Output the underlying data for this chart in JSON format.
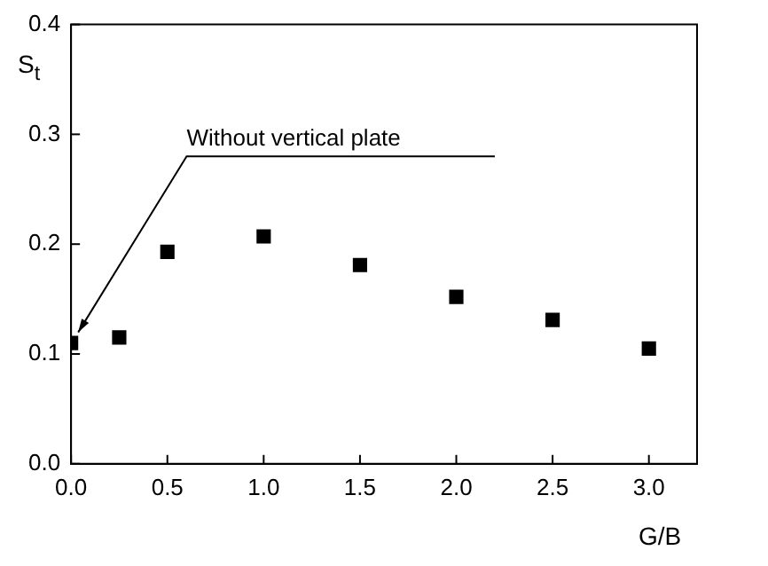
{
  "chart_data": {
    "type": "scatter",
    "xlabel": "G/B",
    "ylabel": "S$_{t}$",
    "x": [
      0,
      0.25,
      0.5,
      1.0,
      1.5,
      2.0,
      2.5,
      3.0
    ],
    "values": [
      0.11,
      0.115,
      0.193,
      0.207,
      0.181,
      0.152,
      0.131,
      0.105
    ],
    "color": "#000000",
    "marker": "square",
    "grid": false,
    "legend": false,
    "xlim": [
      0,
      3.25
    ],
    "ylim": [
      0,
      0.4
    ],
    "xticks": [
      {
        "value": 0,
        "label": "0.0"
      },
      {
        "value": 0.5,
        "label": "0.5"
      },
      {
        "value": 1,
        "label": "1.0"
      },
      {
        "value": 1.5,
        "label": "1.5"
      },
      {
        "value": 2,
        "label": "2.0"
      },
      {
        "value": 2.5,
        "label": "2.5"
      },
      {
        "value": 3,
        "label": "3.0"
      }
    ],
    "yticks": [
      {
        "value": 0,
        "label": "0.0"
      },
      {
        "value": 0.1,
        "label": "0.1"
      },
      {
        "value": 0.2,
        "label": "0.2"
      },
      {
        "value": 0.3,
        "label": "0.3"
      },
      {
        "value": 0.4,
        "label": "0.4"
      }
    ],
    "annotations": [
      {
        "text": "Without vertical plate",
        "x": 0,
        "y": 0.11
      }
    ]
  }
}
